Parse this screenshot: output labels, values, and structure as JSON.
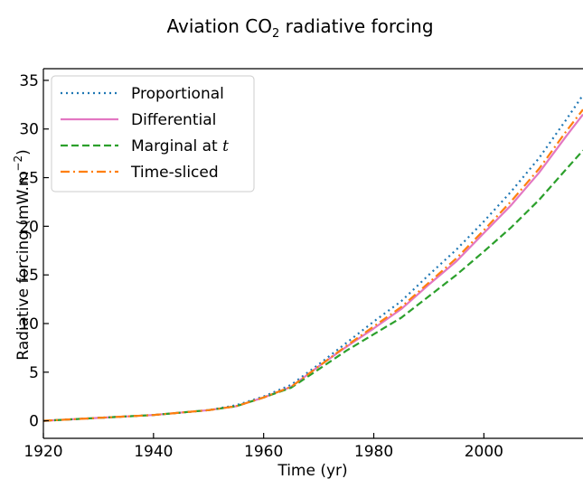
{
  "chart_data": {
    "type": "line",
    "title": "Aviation CO",
    "title_subscript": "2",
    "title_suffix": " radiative forcing",
    "xlabel": "Time (yr)",
    "ylabel": "Radiative forcing (mW.m",
    "ylabel_superscript": "−2",
    "ylabel_suffix": ")",
    "xlim": [
      1920,
      2018
    ],
    "ylim": [
      -1.8,
      36.2
    ],
    "xticks": [
      1920,
      1940,
      1960,
      1980,
      2000
    ],
    "yticks": [
      0,
      5,
      10,
      15,
      20,
      25,
      30,
      35
    ],
    "grid": false,
    "legend_position": "top-left",
    "x": [
      1920,
      1930,
      1940,
      1950,
      1955,
      1960,
      1965,
      1970,
      1975,
      1980,
      1985,
      1990,
      1995,
      2000,
      2005,
      2010,
      2015,
      2018
    ],
    "series": [
      {
        "name": "Proportional",
        "color": "#1f77b4",
        "style": "dotted",
        "values": [
          0,
          0.3,
          0.6,
          1.1,
          1.6,
          2.5,
          3.7,
          5.8,
          8.0,
          10.2,
          12.3,
          15.0,
          17.6,
          20.5,
          23.6,
          27.0,
          31.0,
          33.5
        ]
      },
      {
        "name": "Differential",
        "color": "#e377c2",
        "style": "solid",
        "values": [
          0,
          0.3,
          0.6,
          1.1,
          1.5,
          2.4,
          3.5,
          5.6,
          7.6,
          9.5,
          11.5,
          14.0,
          16.4,
          19.3,
          22.2,
          25.5,
          29.3,
          31.5
        ]
      },
      {
        "name": "Marginal at t",
        "name_prefix": "Marginal at ",
        "name_italic": "t",
        "color": "#2ca02c",
        "style": "dashed",
        "values": [
          0,
          0.3,
          0.6,
          1.1,
          1.5,
          2.4,
          3.4,
          5.3,
          7.2,
          8.9,
          10.6,
          12.8,
          15.0,
          17.4,
          19.9,
          22.7,
          25.9,
          27.8
        ]
      },
      {
        "name": "Time-sliced",
        "color": "#ff7f0e",
        "style": "dashdot",
        "values": [
          0,
          0.3,
          0.6,
          1.1,
          1.5,
          2.4,
          3.5,
          5.6,
          7.7,
          9.7,
          11.7,
          14.2,
          16.7,
          19.6,
          22.6,
          25.9,
          29.8,
          32.0
        ]
      }
    ]
  }
}
